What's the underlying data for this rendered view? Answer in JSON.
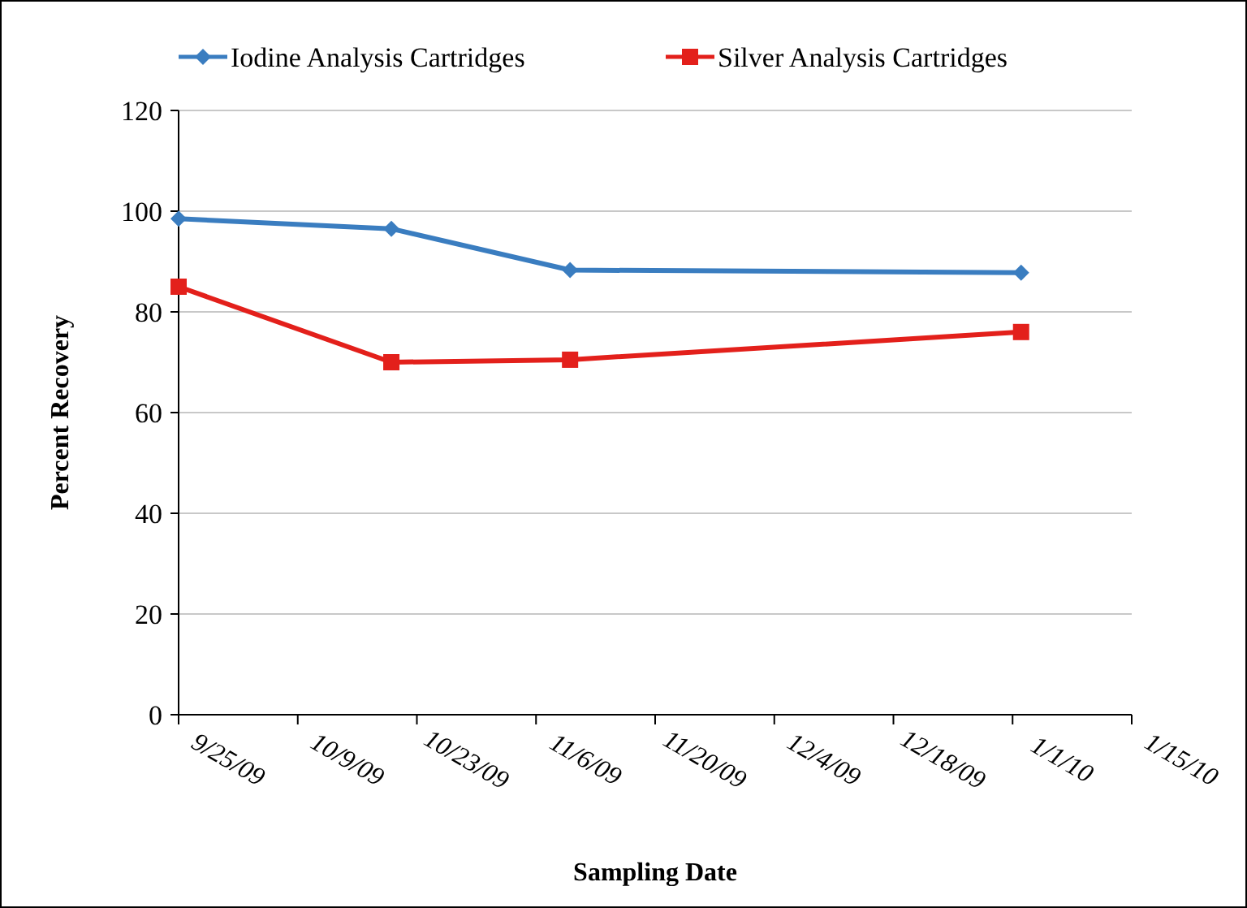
{
  "chart_data": {
    "type": "line",
    "xlabel": "Sampling Date",
    "ylabel": "Percent Recovery",
    "x": [
      "2009-09-25",
      "2009-10-20",
      "2009-11-10",
      "2010-01-02"
    ],
    "series": [
      {
        "name": "Iodine Analysis Cartridges",
        "color": "#3a7dc0",
        "marker": "diamond",
        "values": [
          98.5,
          96.5,
          88.3,
          87.8
        ]
      },
      {
        "name": "Silver Analysis Cartridges",
        "color": "#e3201b",
        "marker": "square",
        "values": [
          85,
          70,
          70.5,
          76
        ]
      }
    ],
    "xlim": [
      "2009-09-25",
      "2010-01-15"
    ],
    "xticks": [
      {
        "value": "2009-09-25",
        "label": "9/25/09"
      },
      {
        "value": "2009-10-09",
        "label": "10/9/09"
      },
      {
        "value": "2009-10-23",
        "label": "10/23/09"
      },
      {
        "value": "2009-11-06",
        "label": "11/6/09"
      },
      {
        "value": "2009-11-20",
        "label": "11/20/09"
      },
      {
        "value": "2009-12-04",
        "label": "12/4/09"
      },
      {
        "value": "2009-12-18",
        "label": "12/18/09"
      },
      {
        "value": "2010-01-01",
        "label": "1/1/10"
      },
      {
        "value": "2010-01-15",
        "label": "1/15/10"
      }
    ],
    "ylim": [
      0,
      120
    ],
    "yticks": [
      0,
      20,
      40,
      60,
      80,
      100,
      120
    ],
    "grid": "y",
    "legend": "top",
    "line_style": "solid"
  }
}
